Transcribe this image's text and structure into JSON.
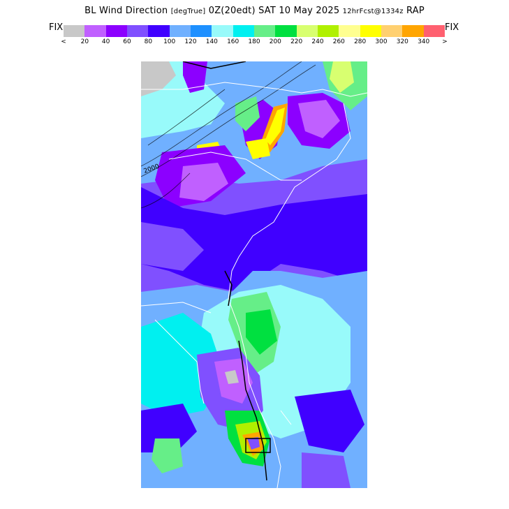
{
  "title": {
    "main_left": "BL Wind Direction",
    "units": "[degTrue]",
    "main_right": "0Z(20edt) SAT 10 May 2025",
    "forecast": "12hrFcst@1334z",
    "model": "RAP"
  },
  "legend": {
    "fix_left": "FIX",
    "fix_right": "FIX",
    "less_than": "<",
    "greater_than": ">",
    "ticks": [
      "20",
      "40",
      "60",
      "80",
      "100",
      "120",
      "140",
      "160",
      "180",
      "200",
      "220",
      "240",
      "260",
      "280",
      "300",
      "320",
      "340"
    ],
    "colors": [
      "#c8c8c8",
      "#c060ff",
      "#8c00ff",
      "#8050ff",
      "#4000ff",
      "#70b0ff",
      "#1e90ff",
      "#98fafa",
      "#00f0f0",
      "#66ee88",
      "#00e040",
      "#d8ff70",
      "#b0f000",
      "#ffff90",
      "#ffff00",
      "#ffd070",
      "#ffa500",
      "#ff6070"
    ]
  },
  "map": {
    "contour_label": "2000",
    "region": "US Southeast coast (NC to FL)"
  }
}
